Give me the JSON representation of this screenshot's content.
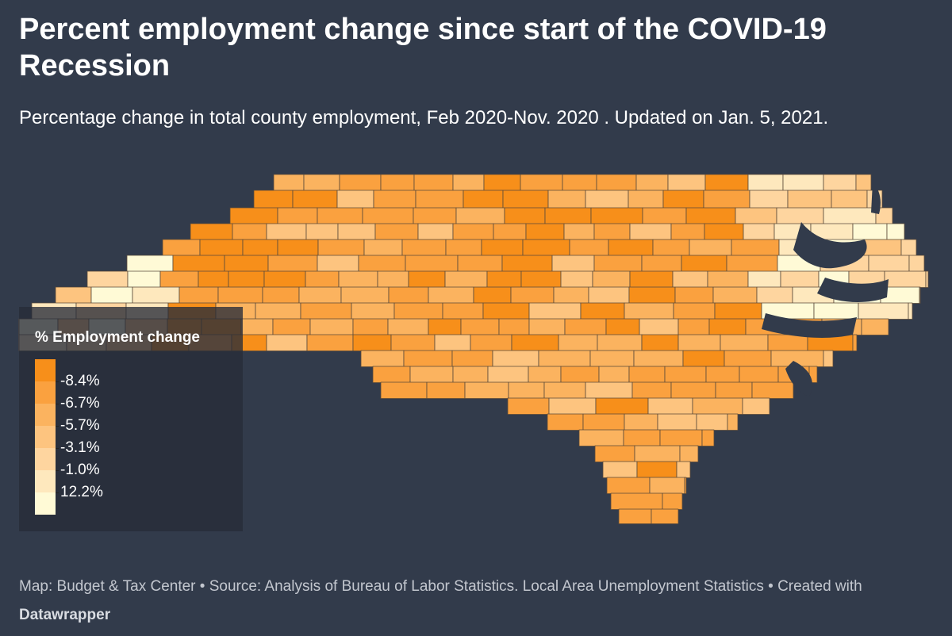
{
  "title": "Percent employment change since start of the COVID-19 Recession",
  "subtitle": "Percentage change in total county employment, Feb 2020-Nov. 2020 . Updated on Jan. 5, 2021.",
  "colors": {
    "background": "#323b4b",
    "county_border": "#5a4a3a",
    "water": "#323b4b"
  },
  "legend": {
    "title": "% Employment change",
    "bins": [
      {
        "label": "-8.4%",
        "color": "#f78f1a"
      },
      {
        "label": "-6.7%",
        "color": "#faa13f"
      },
      {
        "label": "-5.7%",
        "color": "#fbb35f"
      },
      {
        "label": "-3.1%",
        "color": "#fdc47f"
      },
      {
        "label": "-1.0%",
        "color": "#fed59f"
      },
      {
        "label": "12.2%",
        "color": "#fee8bd"
      },
      {
        "label": "",
        "color": "#fffad6"
      }
    ]
  },
  "footer": {
    "map_credit": "Map: Budget & Tax Center",
    "separator": " • ",
    "source": "Source: Analysis of Bureau of Labor Statistics. Local Area Unemployment Statistics",
    "created_prefix": "Created with ",
    "brand": "Datawrapper"
  }
}
